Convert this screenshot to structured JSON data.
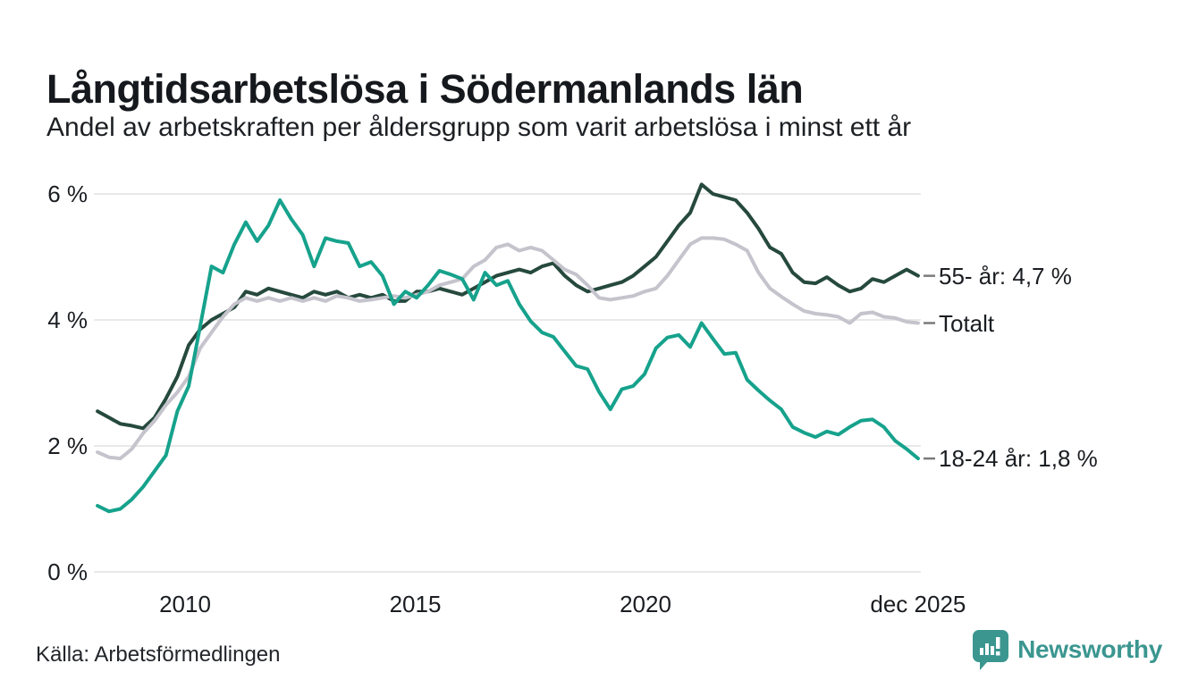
{
  "header": {
    "title": "Långtidsarbetslösa i Södermanlands län",
    "subtitle": "Andel av arbetskraften per åldersgrupp som varit arbetslösa i minst ett år"
  },
  "footer": {
    "source": "Källa: Arbetsförmedlingen",
    "brand": "Newsworthy",
    "brand_icon": "speech-bubble-bar-chart-icon",
    "brand_color": "#3b9690"
  },
  "chart_data": {
    "type": "line",
    "title": "Långtidsarbetslösa i Södermanlands län",
    "subtitle": "Andel av arbetskraften per åldersgrupp som varit arbetslösa i minst ett år",
    "unit": "%",
    "x_start": 2008.1,
    "x_end": 2025.92,
    "x_spacing": "quarterly",
    "grid": "horizontal",
    "legend_position": "right-end-labels",
    "ylim": [
      0,
      6.4
    ],
    "yticks": [
      {
        "label": "0 %",
        "v": 0
      },
      {
        "label": "2 %",
        "v": 2
      },
      {
        "label": "4 %",
        "v": 4
      },
      {
        "label": "6 %",
        "v": 6
      }
    ],
    "xticks": [
      {
        "label": "2010",
        "t": 2010
      },
      {
        "label": "2015",
        "t": 2015
      },
      {
        "label": "2020",
        "t": 2020
      },
      {
        "label": "dec 2025",
        "t": 2025.92
      }
    ],
    "grid_color": "#e8e8e8",
    "end_label_dash_color": "#7a7a7a",
    "series": [
      {
        "name": "55- år",
        "color": "#26493e",
        "end_label": "55- år: 4,7 %",
        "last_value": 4.7,
        "values": [
          2.55,
          2.45,
          2.35,
          2.32,
          2.28,
          2.45,
          2.75,
          3.1,
          3.6,
          3.85,
          4.0,
          4.1,
          4.2,
          4.45,
          4.4,
          4.5,
          4.45,
          4.4,
          4.35,
          4.45,
          4.4,
          4.45,
          4.35,
          4.4,
          4.35,
          4.4,
          4.3,
          4.3,
          4.45,
          4.45,
          4.5,
          4.45,
          4.4,
          4.5,
          4.6,
          4.7,
          4.75,
          4.8,
          4.75,
          4.85,
          4.9,
          4.7,
          4.55,
          4.45,
          4.5,
          4.55,
          4.6,
          4.7,
          4.85,
          5.0,
          5.25,
          5.5,
          5.7,
          6.15,
          6.0,
          5.95,
          5.9,
          5.7,
          5.45,
          5.15,
          5.05,
          4.75,
          4.6,
          4.58,
          4.68,
          4.55,
          4.45,
          4.5,
          4.65,
          4.6,
          4.7,
          4.8,
          4.7
        ]
      },
      {
        "name": "Totalt",
        "color": "#c5c3cc",
        "end_label": "Totalt",
        "last_value": 3.95,
        "values": [
          1.9,
          1.82,
          1.8,
          1.95,
          2.2,
          2.4,
          2.65,
          2.85,
          3.1,
          3.55,
          3.8,
          4.05,
          4.25,
          4.35,
          4.3,
          4.35,
          4.3,
          4.35,
          4.3,
          4.35,
          4.3,
          4.38,
          4.35,
          4.3,
          4.32,
          4.35,
          4.38,
          4.35,
          4.4,
          4.45,
          4.55,
          4.6,
          4.65,
          4.85,
          4.95,
          5.15,
          5.2,
          5.1,
          5.15,
          5.1,
          4.95,
          4.8,
          4.72,
          4.55,
          4.35,
          4.32,
          4.35,
          4.38,
          4.45,
          4.5,
          4.7,
          4.95,
          5.2,
          5.3,
          5.3,
          5.28,
          5.2,
          5.1,
          4.75,
          4.5,
          4.37,
          4.25,
          4.14,
          4.1,
          4.08,
          4.05,
          3.95,
          4.1,
          4.12,
          4.05,
          4.03,
          3.97,
          3.95
        ]
      },
      {
        "name": "18-24 år",
        "color": "#16a28c",
        "end_label": "18-24 år: 1,8 %",
        "last_value": 1.8,
        "values": [
          1.05,
          0.96,
          1.0,
          1.15,
          1.35,
          1.6,
          1.85,
          2.55,
          2.95,
          3.9,
          4.85,
          4.75,
          5.2,
          5.55,
          5.25,
          5.5,
          5.9,
          5.6,
          5.35,
          4.85,
          5.3,
          5.25,
          5.22,
          4.85,
          4.92,
          4.7,
          4.25,
          4.45,
          4.35,
          4.55,
          4.78,
          4.72,
          4.65,
          4.32,
          4.75,
          4.55,
          4.62,
          4.25,
          3.98,
          3.8,
          3.73,
          3.5,
          3.27,
          3.22,
          2.86,
          2.58,
          2.9,
          2.95,
          3.14,
          3.55,
          3.72,
          3.76,
          3.57,
          3.95,
          3.7,
          3.46,
          3.48,
          3.05,
          2.88,
          2.72,
          2.58,
          2.3,
          2.21,
          2.14,
          2.23,
          2.18,
          2.3,
          2.4,
          2.42,
          2.3,
          2.08,
          1.95,
          1.8
        ]
      }
    ]
  }
}
